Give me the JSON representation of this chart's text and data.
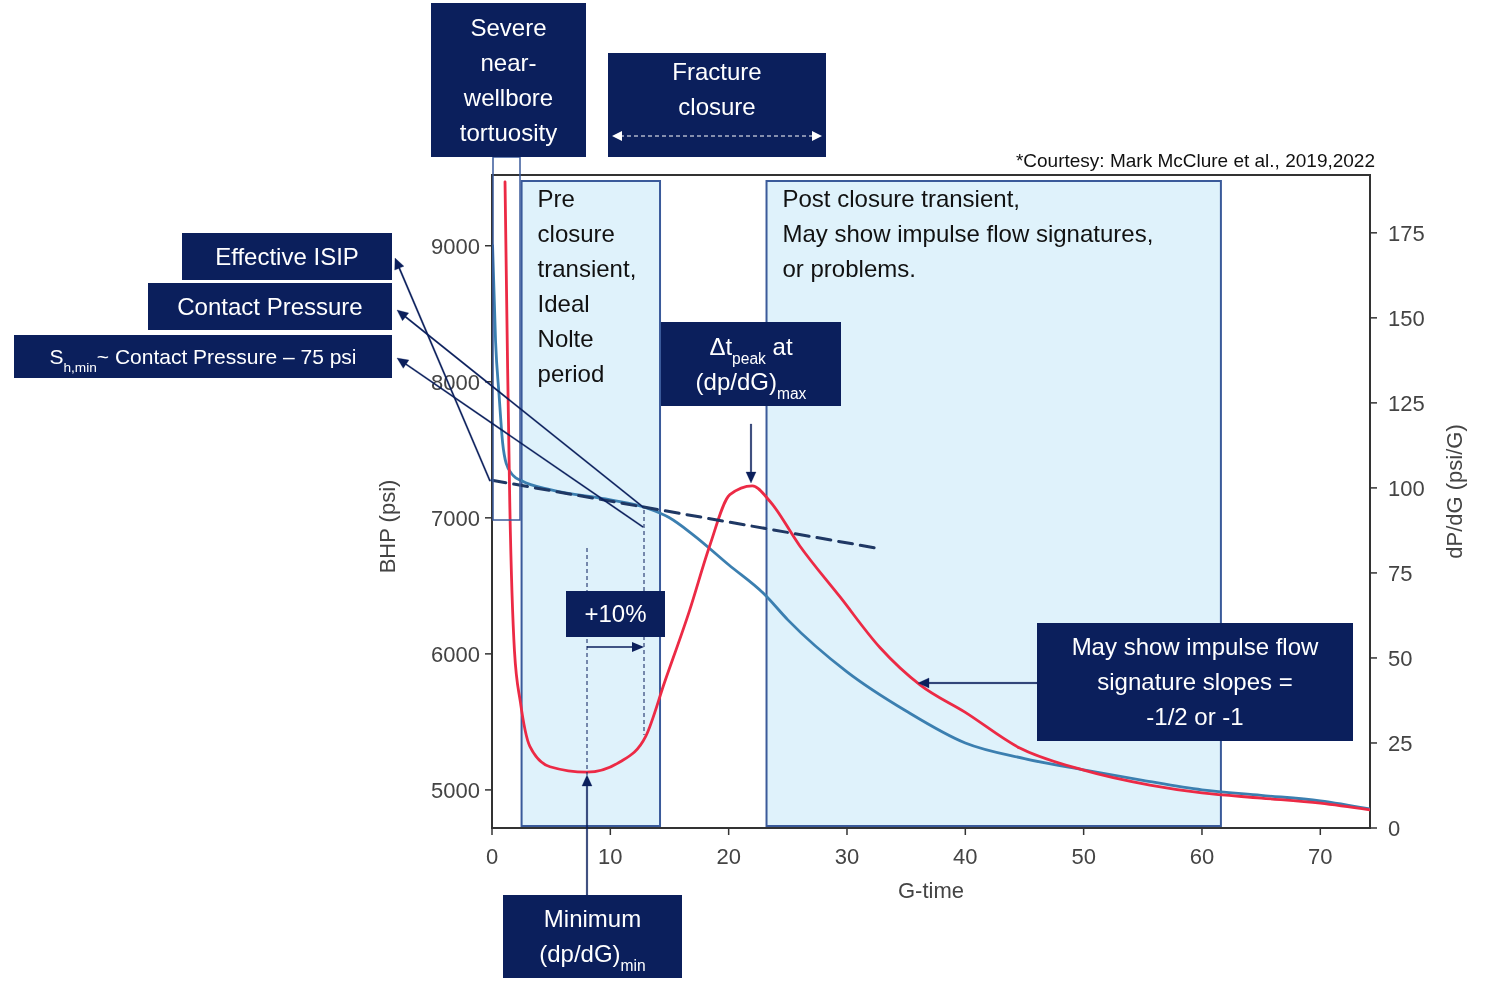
{
  "chart_data": {
    "type": "line",
    "xlabel": "G-time",
    "ylabel": "BHP (psi)",
    "y2label": "dP/dG (psi/G)",
    "xlim": [
      0,
      74.2
    ],
    "xticks": [
      0,
      10,
      20,
      30,
      40,
      50,
      60,
      70
    ],
    "ylim": [
      4720,
      9520
    ],
    "yticks": [
      5000,
      6000,
      7000,
      8000,
      9000
    ],
    "y2lim": [
      0,
      192
    ],
    "y2ticks": [
      0,
      25,
      50,
      75,
      100,
      125,
      150,
      175
    ],
    "grid": false,
    "marker": "none",
    "series": [
      {
        "color": "#3b7fb0",
        "x": [
          0.05,
          0.3,
          0.6,
          0.9,
          1.2,
          1.8,
          2.5,
          5,
          10,
          13,
          15,
          17,
          20,
          23,
          25,
          30,
          35,
          40,
          45,
          50,
          55,
          60,
          65,
          70,
          74.2
        ],
        "values": [
          9000,
          8300,
          7900,
          7550,
          7400,
          7310,
          7272,
          7206,
          7132,
          7074,
          7000,
          6875,
          6655,
          6440,
          6250,
          5868,
          5580,
          5345,
          5230,
          5147,
          5070,
          5000,
          4960,
          4920,
          4860
        ]
      },
      {
        "color": "#ec2a45",
        "axis": "y2",
        "x": [
          1.1,
          1.3,
          1.5,
          1.9,
          2.4,
          3.2,
          4.9,
          8,
          10.8,
          13,
          14.6,
          16.7,
          18.4,
          20.1,
          22,
          23.5,
          26,
          29.4,
          32.8,
          36.2,
          40,
          44.6,
          50,
          55.6,
          60,
          65,
          70,
          74.2
        ],
        "values": [
          190,
          140,
          96,
          52,
          37,
          24,
          18,
          16.4,
          19.4,
          27,
          43,
          64,
          83,
          98,
          100.6,
          96,
          83,
          68,
          53,
          42,
          34,
          23.5,
          17,
          12.6,
          10.3,
          8.8,
          7.3,
          5.3
        ]
      },
      {
        "color": "#1f3864",
        "line_style": "dashed",
        "x": [
          0,
          32.4
        ],
        "values": [
          7276,
          6779
        ]
      }
    ],
    "bands": [
      {
        "axis": "x",
        "from": 2.5,
        "to": 14.2,
        "label": "Pre\nclosure\ntransient,\nIdeal\nNolte\nperiod",
        "color": "#dff2fb"
      },
      {
        "axis": "x",
        "from": 23.2,
        "to": 61.6,
        "label": "Post closure transient,\nMay show impulse flow signatures,\nor problems.",
        "color": "#dff2fb"
      }
    ],
    "annotations": [
      "Severe\nnear-\nwellbore\ntortuosity",
      "Fracture\nclosure",
      "Effective ISIP",
      "Contact Pressure",
      "S$_{h,min}$~ Contact Pressure – 75 psi",
      "Δt$_{peak}$ at\n(dp/dG)$_{max}$",
      "+10%",
      "May show impulse flow\nsignature slopes =\n-1/2 or -1",
      "Minimum\n(dp/dG)$_{min}$",
      "*Courtesy: Mark McClure et al., 2019,2022"
    ]
  }
}
